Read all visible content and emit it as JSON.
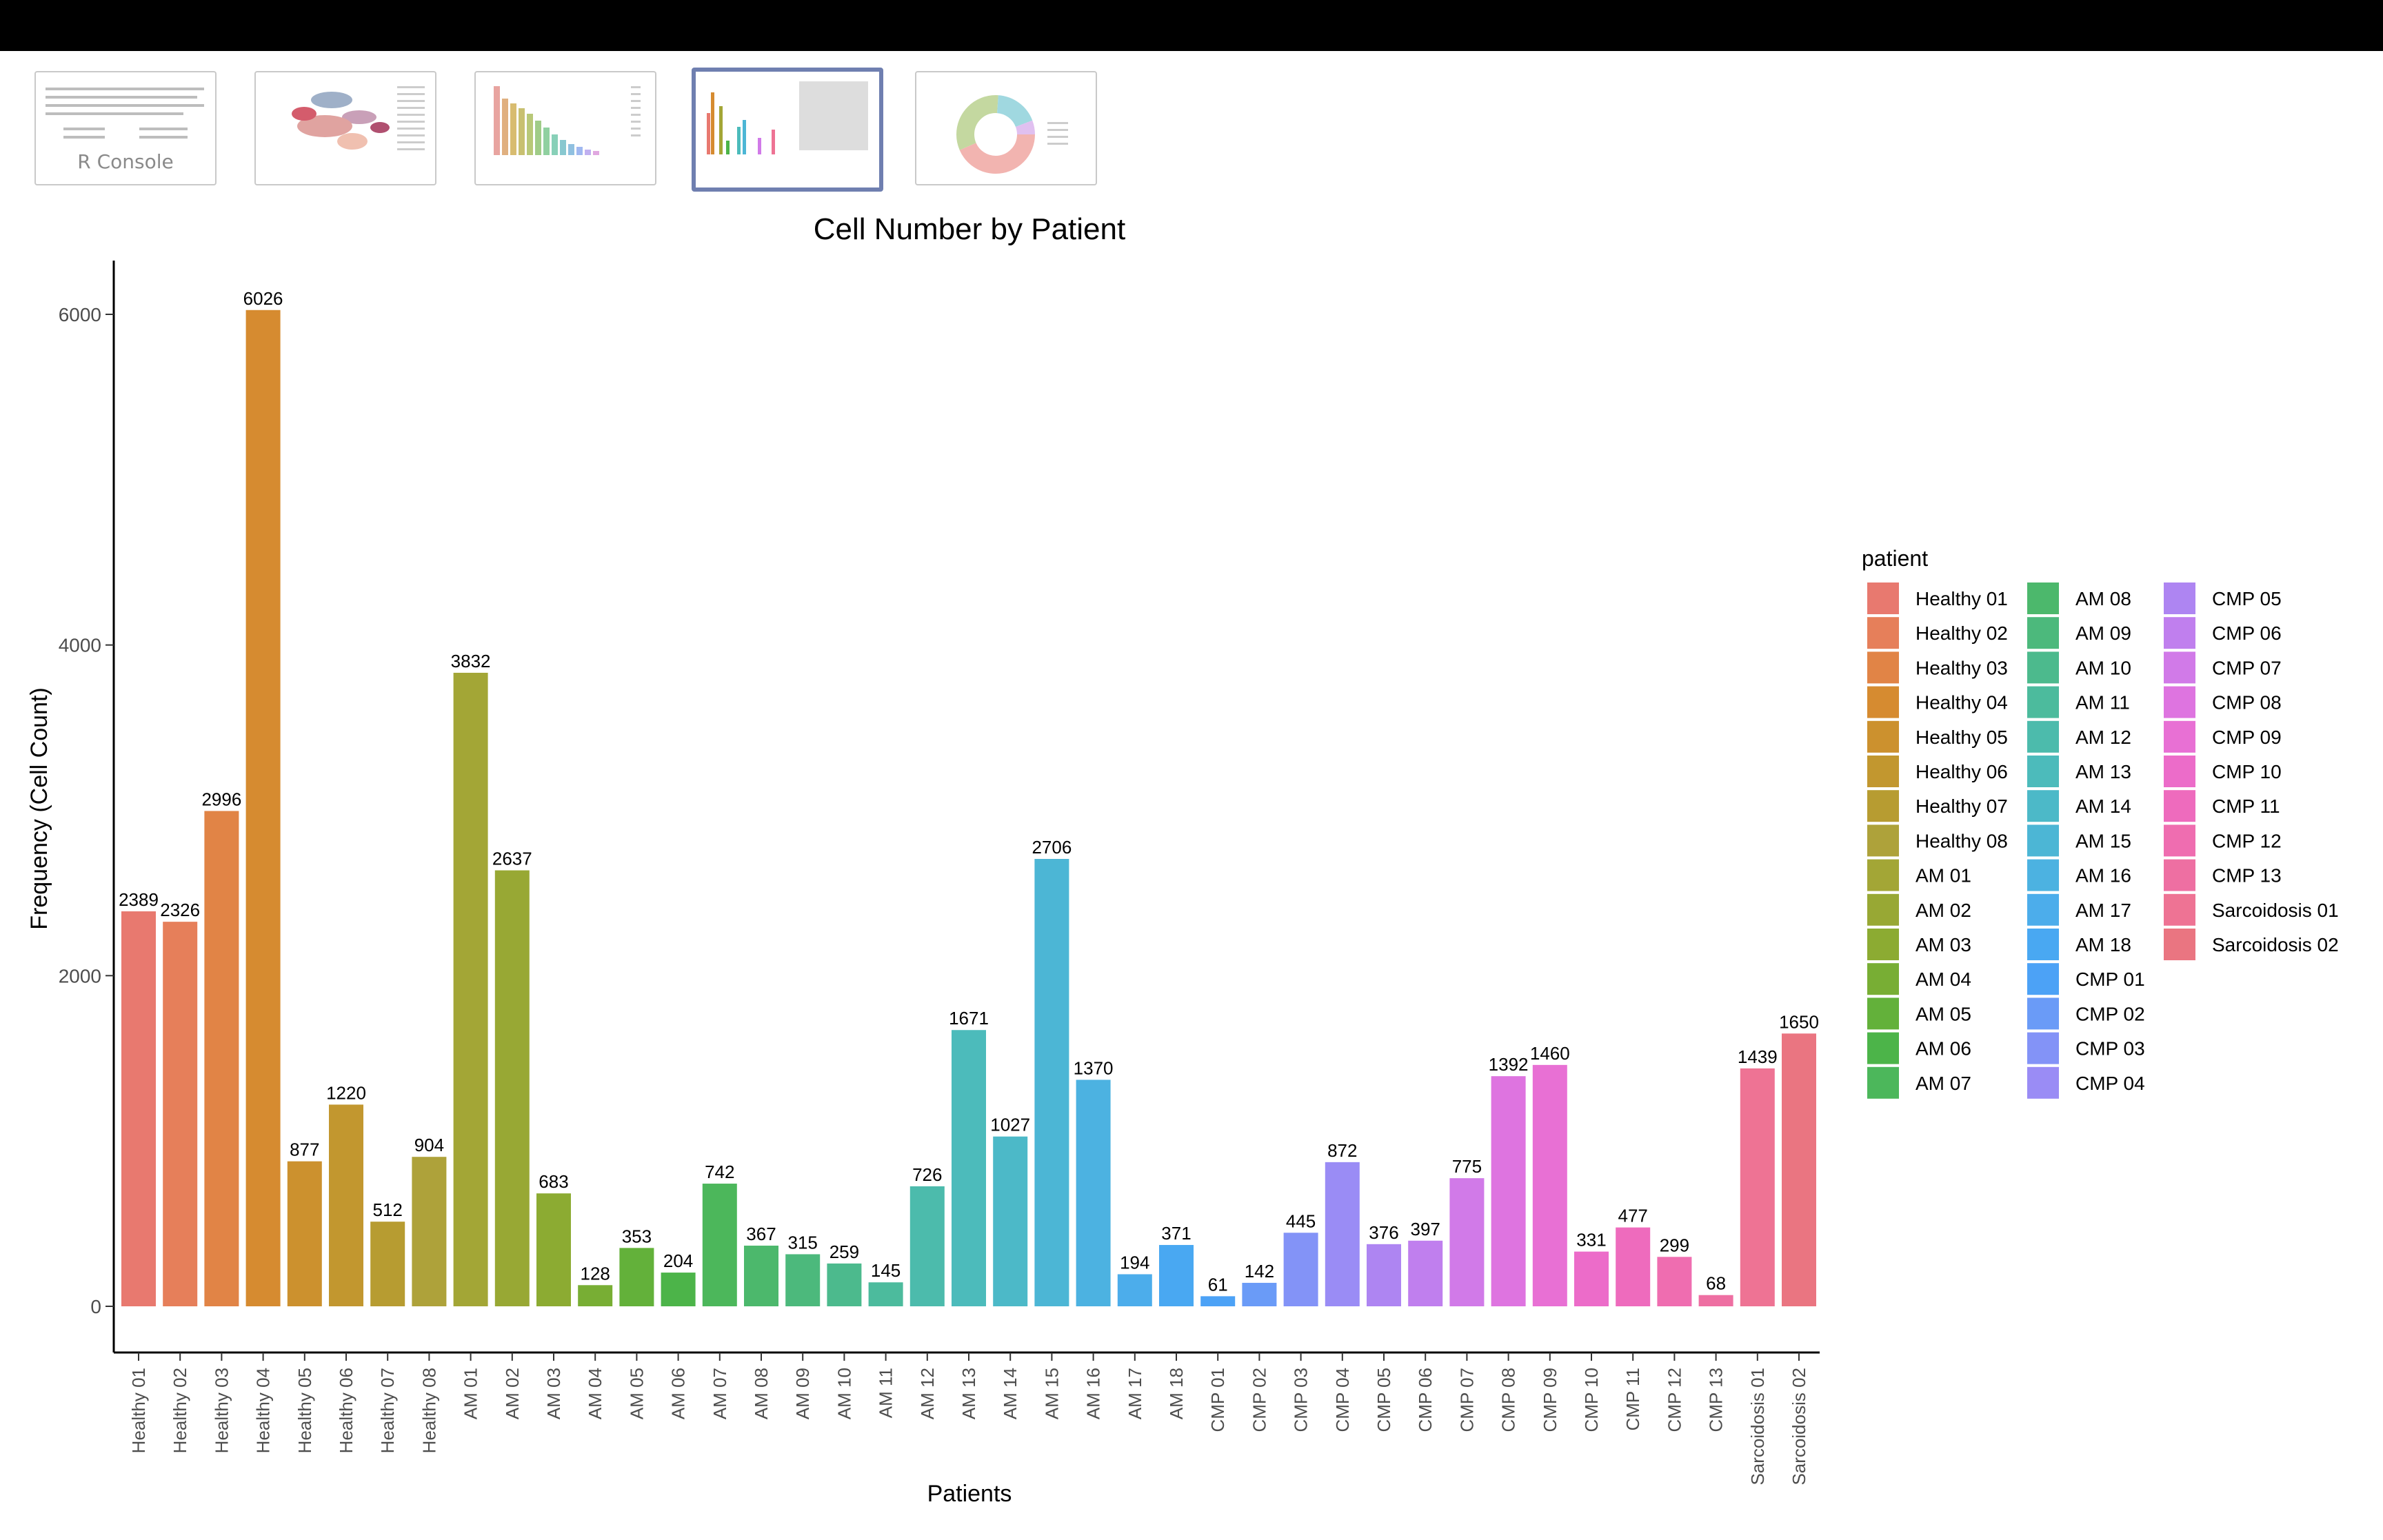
{
  "app": {
    "console_label": "R Console"
  },
  "colors": {
    "topbar": "#000000",
    "thumb_active_border": "#6f7fb0"
  },
  "thumbnails": [
    {
      "name": "r-console-thumb",
      "label": "R Console",
      "active": false
    },
    {
      "name": "umap-plot-thumb",
      "label": "",
      "active": false
    },
    {
      "name": "cluster-bar-thumb",
      "label": "",
      "active": false
    },
    {
      "name": "patient-bar-thumb",
      "label": "",
      "active": true
    },
    {
      "name": "donut-chart-thumb",
      "label": "",
      "active": false
    }
  ],
  "chart_data": {
    "type": "bar",
    "title": "Cell Number by Patient",
    "xlabel": "Patients",
    "ylabel": "Frequency (Cell Count)",
    "ylim": [
      0,
      6300
    ],
    "yticks": [
      0,
      2000,
      4000,
      6000
    ],
    "grid": false,
    "legend_title": "patient",
    "legend_position": "right",
    "categories": [
      "Healthy 01",
      "Healthy 02",
      "Healthy 03",
      "Healthy 04",
      "Healthy 05",
      "Healthy 06",
      "Healthy 07",
      "Healthy 08",
      "AM 01",
      "AM 02",
      "AM 03",
      "AM 04",
      "AM 05",
      "AM 06",
      "AM 07",
      "AM 08",
      "AM 09",
      "AM 10",
      "AM 11",
      "AM 12",
      "AM 13",
      "AM 14",
      "AM 15",
      "AM 16",
      "AM 17",
      "AM 18",
      "CMP 01",
      "CMP 02",
      "CMP 03",
      "CMP 04",
      "CMP 05",
      "CMP 06",
      "CMP 07",
      "CMP 08",
      "CMP 09",
      "CMP 10",
      "CMP 11",
      "CMP 12",
      "CMP 13",
      "Sarcoidosis 01",
      "Sarcoidosis 02"
    ],
    "values": [
      2389,
      2326,
      2996,
      6026,
      877,
      1220,
      512,
      904,
      3832,
      2637,
      683,
      128,
      353,
      204,
      742,
      367,
      315,
      259,
      145,
      726,
      1671,
      1027,
      2706,
      1370,
      194,
      371,
      61,
      142,
      445,
      872,
      376,
      397,
      775,
      1392,
      1460,
      331,
      477,
      299,
      68,
      1439,
      1650
    ],
    "colors": [
      "#E8796F",
      "#E67F5A",
      "#E18446",
      "#D68B30",
      "#CC912E",
      "#C2972F",
      "#B79C31",
      "#AEA23A",
      "#A3A636",
      "#98A834",
      "#8CAB32",
      "#78AE34",
      "#63B13A",
      "#4CB449",
      "#4CB75B",
      "#4CB86C",
      "#4CB97C",
      "#4CBA8D",
      "#4CBB9D",
      "#4CBBAC",
      "#4CBBBB",
      "#4CB9C8",
      "#4CB6D5",
      "#4CB2E1",
      "#4CADEB",
      "#49A8F2",
      "#4CA2F6",
      "#6A9BF7",
      "#8393F7",
      "#9A8CF5",
      "#AE85F2",
      "#C07FEE",
      "#D17AE8",
      "#DE74E0",
      "#E870D4",
      "#EC6CC9",
      "#EE6BBD",
      "#EF6DB0",
      "#EE6FA2",
      "#EE7394",
      "#EA7581"
    ]
  }
}
